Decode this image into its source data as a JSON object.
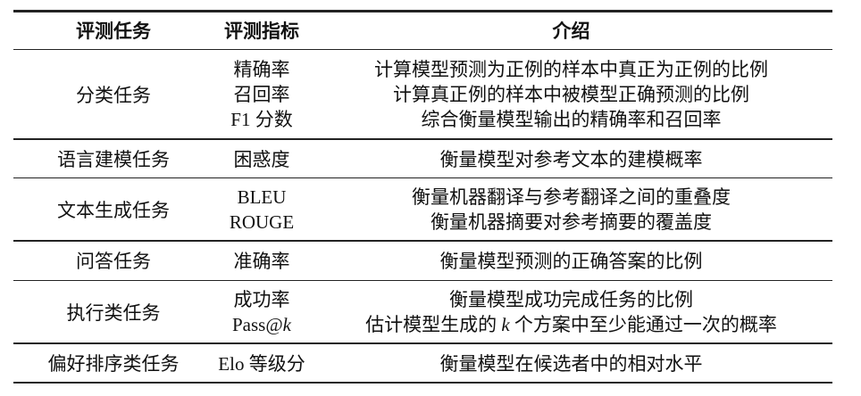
{
  "header": {
    "task": "评测任务",
    "metric": "评测指标",
    "intro": "介绍"
  },
  "rows": [
    {
      "task": "分类任务",
      "metrics": [
        "精确率",
        "召回率",
        "F1 分数"
      ],
      "intros": [
        "计算模型预测为正例的样本中真正为正例的比例",
        "计算真正例的样本中被模型正确预测的比例",
        "综合衡量模型输出的精确率和召回率"
      ]
    },
    {
      "task": "语言建模任务",
      "metrics": [
        "困惑度"
      ],
      "intros": [
        "衡量模型对参考文本的建模概率"
      ]
    },
    {
      "task": "文本生成任务",
      "metrics": [
        "BLEU",
        "ROUGE"
      ],
      "intros": [
        "衡量机器翻译与参考翻译之间的重叠度",
        "衡量机器摘要对参考摘要的覆盖度"
      ]
    },
    {
      "task": "问答任务",
      "metrics": [
        "准确率"
      ],
      "intros": [
        "衡量模型预测的正确答案的比例"
      ]
    },
    {
      "task": "执行类任务",
      "metrics": [
        "成功率"
      ],
      "metric_pass": {
        "prefix": "Pass@",
        "var": "k"
      },
      "intros": [
        "衡量模型成功完成任务的比例"
      ],
      "intro_pass": {
        "before": "估计模型生成的 ",
        "var": "k",
        "after": " 个方案中至少能通过一次的概率"
      }
    },
    {
      "task": "偏好排序类任务",
      "metrics": [
        "Elo 等级分"
      ],
      "intros": [
        "衡量模型在候选者中的相对水平"
      ]
    }
  ]
}
